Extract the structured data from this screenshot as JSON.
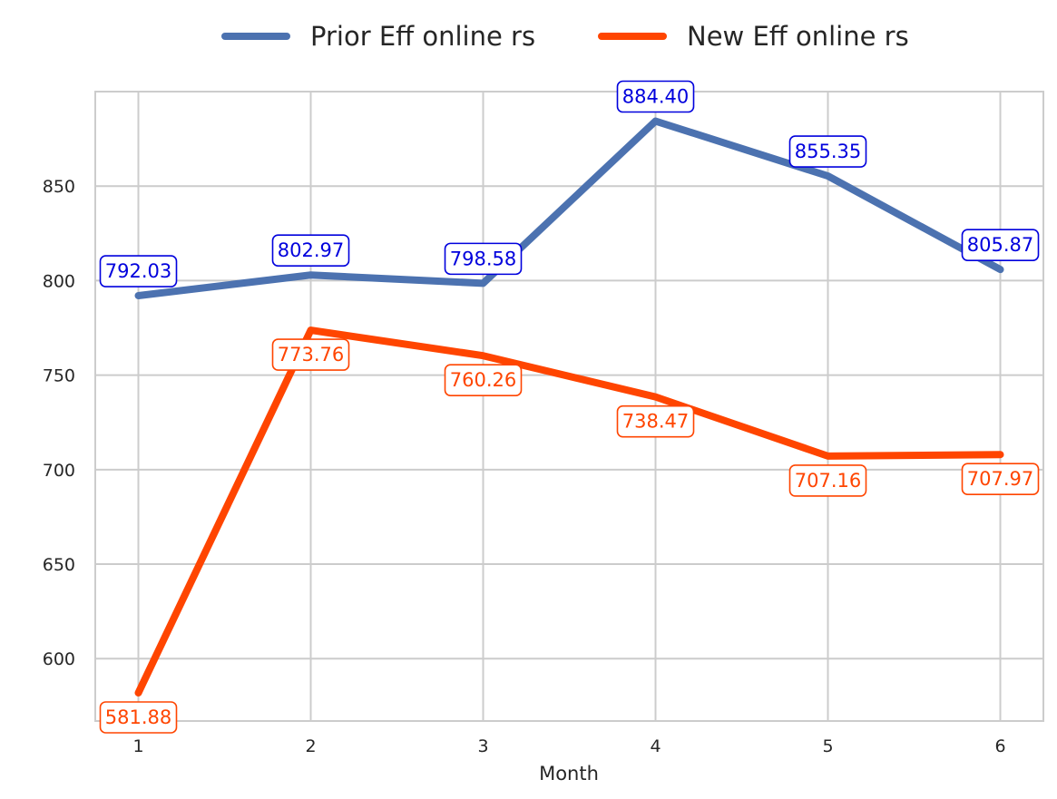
{
  "chart_data": {
    "type": "line",
    "title": "",
    "xlabel": "Month",
    "ylabel": "",
    "x": [
      1,
      2,
      3,
      4,
      5,
      6
    ],
    "x_tick_labels": [
      "1",
      "2",
      "3",
      "4",
      "5",
      "6"
    ],
    "xlim": [
      0.75,
      6.25
    ],
    "ylim": [
      567,
      900
    ],
    "y_ticks": [
      600,
      650,
      700,
      750,
      800,
      850
    ],
    "y_tick_labels": [
      "600",
      "650",
      "700",
      "750",
      "800",
      "850"
    ],
    "grid": true,
    "legend_position": "top-center",
    "series": [
      {
        "name": "Prior Eff online rs",
        "color": "#4c72b0",
        "label_color": "#0000dd",
        "label_position": "above",
        "values": [
          792.03,
          802.97,
          798.58,
          884.4,
          855.35,
          805.87
        ],
        "value_labels": [
          "792.03",
          "802.97",
          "798.58",
          "884.40",
          "855.35",
          "805.87"
        ]
      },
      {
        "name": "New Eff online rs",
        "color": "#ff4500",
        "label_color": "#ff4500",
        "label_position": "below",
        "values": [
          581.88,
          773.76,
          760.26,
          738.47,
          707.16,
          707.97
        ],
        "value_labels": [
          "581.88",
          "773.76",
          "760.26",
          "738.47",
          "707.16",
          "707.97"
        ]
      }
    ]
  }
}
